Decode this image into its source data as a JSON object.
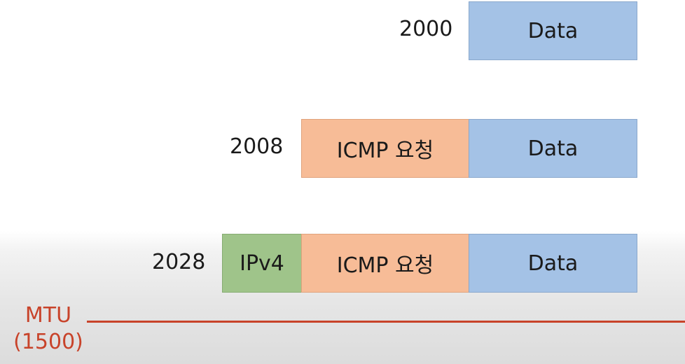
{
  "rows": [
    {
      "size": "2000",
      "data": "Data"
    },
    {
      "size": "2008",
      "icmp": "ICMP 요청",
      "data": "Data"
    },
    {
      "size": "2028",
      "ipv4": "IPv4",
      "icmp": "ICMP 요청",
      "data": "Data"
    }
  ],
  "mtu": {
    "label": "MTU",
    "value": "(1500)"
  },
  "colors": {
    "data": "#a4c2e6",
    "icmp": "#f7bc97",
    "ipv4": "#9fc48a",
    "mtu": "#c8432a"
  }
}
